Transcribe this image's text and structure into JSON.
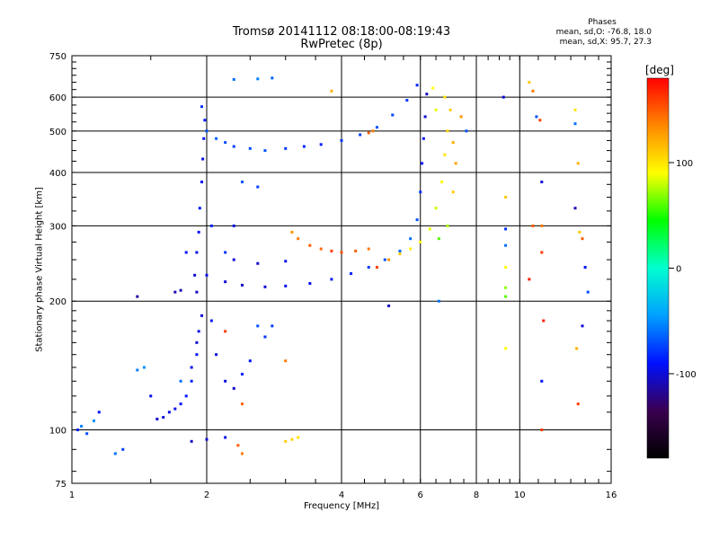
{
  "header": {
    "title_line1": "Tromsø 20141112 08:18:00-08:19:43",
    "title_line2": "RwPretec (8p)"
  },
  "phase_box": {
    "title": "Phases",
    "line_o": "mean, sd,O: -76.8, 18.0",
    "line_x": "mean, sd,X:  95.7, 27.3"
  },
  "colorbar": {
    "unit": "[deg]",
    "ticks": [
      {
        "value": 100,
        "label": "100"
      },
      {
        "value": 0,
        "label": "0"
      },
      {
        "value": -100,
        "label": "-100"
      }
    ],
    "range": [
      -180,
      180
    ],
    "colors": [
      "#000000",
      "#3a0050",
      "#0010ff",
      "#00a0ff",
      "#00ffd0",
      "#00ff00",
      "#ffff00",
      "#ff8800",
      "#ff0000"
    ]
  },
  "chart_data": {
    "type": "scatter",
    "xlabel": "Frequency [MHz]",
    "ylabel": "Stationary phase Virtual Height [km]",
    "x_scale": "log",
    "y_scale": "log",
    "xlim": [
      1,
      16
    ],
    "ylim": [
      75,
      750
    ],
    "x_ticks": [
      1,
      2,
      4,
      6,
      8,
      10,
      16
    ],
    "y_ticks": [
      75,
      100,
      200,
      300,
      400,
      500,
      600,
      750
    ],
    "grid": true,
    "legend": "colorbar-right",
    "points": [
      {
        "f": 1.03,
        "h": 100,
        "p": -85
      },
      {
        "f": 1.05,
        "h": 102,
        "p": -55
      },
      {
        "f": 1.08,
        "h": 98,
        "p": -70
      },
      {
        "f": 1.12,
        "h": 105,
        "p": -50
      },
      {
        "f": 1.15,
        "h": 110,
        "p": -90
      },
      {
        "f": 1.25,
        "h": 88,
        "p": -60
      },
      {
        "f": 1.3,
        "h": 90,
        "p": -75
      },
      {
        "f": 1.4,
        "h": 138,
        "p": -55
      },
      {
        "f": 1.45,
        "h": 140,
        "p": -50
      },
      {
        "f": 1.5,
        "h": 120,
        "p": -95
      },
      {
        "f": 1.55,
        "h": 106,
        "p": -105
      },
      {
        "f": 1.6,
        "h": 107,
        "p": -100
      },
      {
        "f": 1.65,
        "h": 110,
        "p": -98
      },
      {
        "f": 1.7,
        "h": 112,
        "p": -95
      },
      {
        "f": 1.75,
        "h": 115,
        "p": -90
      },
      {
        "f": 1.8,
        "h": 120,
        "p": -88
      },
      {
        "f": 1.85,
        "h": 130,
        "p": -85
      },
      {
        "f": 1.9,
        "h": 150,
        "p": -90
      },
      {
        "f": 1.92,
        "h": 170,
        "p": -95
      },
      {
        "f": 1.95,
        "h": 185,
        "p": -100
      },
      {
        "f": 1.9,
        "h": 210,
        "p": -105
      },
      {
        "f": 1.7,
        "h": 210,
        "p": -110
      },
      {
        "f": 1.75,
        "h": 212,
        "p": -108
      },
      {
        "f": 1.4,
        "h": 205,
        "p": -115
      },
      {
        "f": 1.88,
        "h": 230,
        "p": -100
      },
      {
        "f": 1.9,
        "h": 260,
        "p": -95
      },
      {
        "f": 1.92,
        "h": 290,
        "p": -90
      },
      {
        "f": 1.93,
        "h": 330,
        "p": -88
      },
      {
        "f": 1.95,
        "h": 380,
        "p": -92
      },
      {
        "f": 1.96,
        "h": 430,
        "p": -95
      },
      {
        "f": 1.97,
        "h": 480,
        "p": -90
      },
      {
        "f": 1.98,
        "h": 530,
        "p": -85
      },
      {
        "f": 1.95,
        "h": 570,
        "p": -80
      },
      {
        "f": 2.0,
        "h": 500,
        "p": -70
      },
      {
        "f": 2.1,
        "h": 480,
        "p": -65
      },
      {
        "f": 2.2,
        "h": 470,
        "p": -70
      },
      {
        "f": 2.3,
        "h": 460,
        "p": -75
      },
      {
        "f": 2.5,
        "h": 455,
        "p": -72
      },
      {
        "f": 2.7,
        "h": 450,
        "p": -70
      },
      {
        "f": 3.0,
        "h": 455,
        "p": -78
      },
      {
        "f": 3.3,
        "h": 460,
        "p": -82
      },
      {
        "f": 3.6,
        "h": 465,
        "p": -85
      },
      {
        "f": 4.0,
        "h": 475,
        "p": -80
      },
      {
        "f": 4.4,
        "h": 490,
        "p": -75
      },
      {
        "f": 4.8,
        "h": 510,
        "p": -70
      },
      {
        "f": 5.2,
        "h": 545,
        "p": -72
      },
      {
        "f": 5.6,
        "h": 590,
        "p": -78
      },
      {
        "f": 5.9,
        "h": 640,
        "p": -85
      },
      {
        "f": 4.6,
        "h": 495,
        "p": 150
      },
      {
        "f": 4.7,
        "h": 500,
        "p": 140
      },
      {
        "f": 2.4,
        "h": 380,
        "p": -70
      },
      {
        "f": 2.6,
        "h": 370,
        "p": -75
      },
      {
        "f": 2.3,
        "h": 660,
        "p": -60
      },
      {
        "f": 2.6,
        "h": 662,
        "p": -55
      },
      {
        "f": 2.8,
        "h": 665,
        "p": -65
      },
      {
        "f": 3.8,
        "h": 620,
        "p": 120
      },
      {
        "f": 2.0,
        "h": 230,
        "p": -95
      },
      {
        "f": 2.2,
        "h": 222,
        "p": -100
      },
      {
        "f": 2.4,
        "h": 218,
        "p": -105
      },
      {
        "f": 2.7,
        "h": 216,
        "p": -100
      },
      {
        "f": 3.0,
        "h": 217,
        "p": -95
      },
      {
        "f": 3.4,
        "h": 220,
        "p": -92
      },
      {
        "f": 3.8,
        "h": 225,
        "p": -88
      },
      {
        "f": 4.2,
        "h": 232,
        "p": -85
      },
      {
        "f": 4.6,
        "h": 240,
        "p": -78
      },
      {
        "f": 5.0,
        "h": 250,
        "p": -70
      },
      {
        "f": 5.4,
        "h": 262,
        "p": -62
      },
      {
        "f": 5.7,
        "h": 280,
        "p": -60
      },
      {
        "f": 5.9,
        "h": 310,
        "p": -70
      },
      {
        "f": 6.0,
        "h": 360,
        "p": -80
      },
      {
        "f": 6.05,
        "h": 420,
        "p": -90
      },
      {
        "f": 6.1,
        "h": 480,
        "p": -95
      },
      {
        "f": 6.15,
        "h": 540,
        "p": -100
      },
      {
        "f": 6.2,
        "h": 610,
        "p": -105
      },
      {
        "f": 2.3,
        "h": 250,
        "p": -100
      },
      {
        "f": 2.6,
        "h": 245,
        "p": -105
      },
      {
        "f": 3.0,
        "h": 248,
        "p": -95
      },
      {
        "f": 3.1,
        "h": 290,
        "p": 130
      },
      {
        "f": 3.2,
        "h": 280,
        "p": 140
      },
      {
        "f": 3.4,
        "h": 270,
        "p": 150
      },
      {
        "f": 3.6,
        "h": 265,
        "p": 145
      },
      {
        "f": 3.8,
        "h": 262,
        "p": 160
      },
      {
        "f": 4.0,
        "h": 260,
        "p": 155
      },
      {
        "f": 4.3,
        "h": 262,
        "p": 150
      },
      {
        "f": 4.6,
        "h": 265,
        "p": 140
      },
      {
        "f": 4.8,
        "h": 240,
        "p": 160
      },
      {
        "f": 5.1,
        "h": 250,
        "p": 130
      },
      {
        "f": 5.4,
        "h": 258,
        "p": 110
      },
      {
        "f": 5.7,
        "h": 265,
        "p": 95
      },
      {
        "f": 6.0,
        "h": 275,
        "p": 90
      },
      {
        "f": 6.3,
        "h": 295,
        "p": 85
      },
      {
        "f": 6.5,
        "h": 330,
        "p": 80
      },
      {
        "f": 6.7,
        "h": 380,
        "p": 90
      },
      {
        "f": 6.8,
        "h": 440,
        "p": 100
      },
      {
        "f": 6.9,
        "h": 500,
        "p": 105
      },
      {
        "f": 7.0,
        "h": 560,
        "p": 110
      },
      {
        "f": 6.8,
        "h": 600,
        "p": 100
      },
      {
        "f": 7.1,
        "h": 470,
        "p": 120
      },
      {
        "f": 7.2,
        "h": 420,
        "p": 125
      },
      {
        "f": 7.1,
        "h": 360,
        "p": 110
      },
      {
        "f": 6.9,
        "h": 300,
        "p": 75
      },
      {
        "f": 6.6,
        "h": 280,
        "p": 60
      },
      {
        "f": 6.4,
        "h": 630,
        "p": 90
      },
      {
        "f": 6.5,
        "h": 560,
        "p": 85
      },
      {
        "f": 7.4,
        "h": 540,
        "p": 130
      },
      {
        "f": 7.6,
        "h": 500,
        "p": -70
      },
      {
        "f": 1.85,
        "h": 140,
        "p": -95
      },
      {
        "f": 1.9,
        "h": 160,
        "p": -100
      },
      {
        "f": 2.05,
        "h": 180,
        "p": -90
      },
      {
        "f": 2.1,
        "h": 150,
        "p": -100
      },
      {
        "f": 2.2,
        "h": 130,
        "p": -95
      },
      {
        "f": 2.3,
        "h": 125,
        "p": -105
      },
      {
        "f": 2.4,
        "h": 135,
        "p": -85
      },
      {
        "f": 2.5,
        "h": 145,
        "p": -90
      },
      {
        "f": 2.6,
        "h": 175,
        "p": -70
      },
      {
        "f": 2.7,
        "h": 165,
        "p": -80
      },
      {
        "f": 2.8,
        "h": 175,
        "p": -75
      },
      {
        "f": 2.2,
        "h": 170,
        "p": 160
      },
      {
        "f": 2.4,
        "h": 115,
        "p": 150
      },
      {
        "f": 3.0,
        "h": 145,
        "p": 140
      },
      {
        "f": 2.0,
        "h": 95,
        "p": -100
      },
      {
        "f": 1.85,
        "h": 94,
        "p": -105
      },
      {
        "f": 2.2,
        "h": 96,
        "p": -95
      },
      {
        "f": 2.35,
        "h": 92,
        "p": 150
      },
      {
        "f": 2.4,
        "h": 88,
        "p": 140
      },
      {
        "f": 3.0,
        "h": 94,
        "p": 110
      },
      {
        "f": 3.1,
        "h": 95,
        "p": 105
      },
      {
        "f": 3.2,
        "h": 96,
        "p": 100
      },
      {
        "f": 1.75,
        "h": 130,
        "p": -60
      },
      {
        "f": 1.8,
        "h": 260,
        "p": -90
      },
      {
        "f": 2.05,
        "h": 300,
        "p": -85
      },
      {
        "f": 2.2,
        "h": 260,
        "p": -80
      },
      {
        "f": 2.3,
        "h": 300,
        "p": -95
      },
      {
        "f": 5.1,
        "h": 195,
        "p": -105
      },
      {
        "f": 6.6,
        "h": 200,
        "p": -60
      },
      {
        "f": 9.2,
        "h": 600,
        "p": -100
      },
      {
        "f": 9.3,
        "h": 350,
        "p": 110
      },
      {
        "f": 9.3,
        "h": 295,
        "p": -80
      },
      {
        "f": 9.3,
        "h": 270,
        "p": -60
      },
      {
        "f": 9.3,
        "h": 240,
        "p": 90
      },
      {
        "f": 9.3,
        "h": 215,
        "p": 70
      },
      {
        "f": 9.3,
        "h": 205,
        "p": 60
      },
      {
        "f": 9.3,
        "h": 155,
        "p": 90
      },
      {
        "f": 10.5,
        "h": 650,
        "p": 110
      },
      {
        "f": 10.7,
        "h": 620,
        "p": 140
      },
      {
        "f": 10.9,
        "h": 540,
        "p": -70
      },
      {
        "f": 11.1,
        "h": 530,
        "p": 160
      },
      {
        "f": 10.7,
        "h": 300,
        "p": 150
      },
      {
        "f": 10.5,
        "h": 225,
        "p": 170
      },
      {
        "f": 11.2,
        "h": 380,
        "p": -100
      },
      {
        "f": 11.2,
        "h": 300,
        "p": 140
      },
      {
        "f": 11.2,
        "h": 260,
        "p": 160
      },
      {
        "f": 11.3,
        "h": 180,
        "p": 170
      },
      {
        "f": 11.2,
        "h": 130,
        "p": -90
      },
      {
        "f": 11.2,
        "h": 100,
        "p": 160
      },
      {
        "f": 13.3,
        "h": 560,
        "p": 100
      },
      {
        "f": 13.3,
        "h": 520,
        "p": -60
      },
      {
        "f": 13.5,
        "h": 420,
        "p": 120
      },
      {
        "f": 13.3,
        "h": 330,
        "p": -110
      },
      {
        "f": 13.6,
        "h": 290,
        "p": 110
      },
      {
        "f": 13.8,
        "h": 280,
        "p": 150
      },
      {
        "f": 14.0,
        "h": 240,
        "p": -90
      },
      {
        "f": 14.2,
        "h": 210,
        "p": -70
      },
      {
        "f": 13.8,
        "h": 175,
        "p": -100
      },
      {
        "f": 13.4,
        "h": 155,
        "p": 120
      },
      {
        "f": 13.5,
        "h": 115,
        "p": 160
      }
    ]
  }
}
